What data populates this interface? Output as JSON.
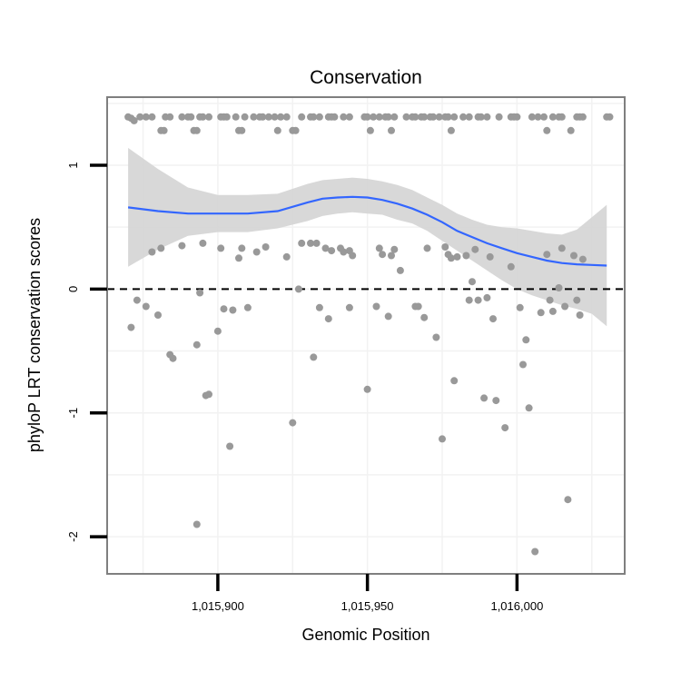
{
  "chart_data": {
    "type": "scatter",
    "title": "Conservation",
    "xlabel": "Genomic Position",
    "ylabel": "phyloP LRT conservation scores",
    "xlim": [
      1015863,
      1016036
    ],
    "ylim": [
      -2.3,
      1.55
    ],
    "x_ticks": [
      1015900,
      1015950,
      1016000
    ],
    "x_tick_labels": [
      "1,015,900",
      "1,015,950",
      "1,016,000"
    ],
    "y_ticks": [
      -2,
      -1,
      0,
      1
    ],
    "y_tick_labels": [
      "-2",
      "-1",
      "0",
      "1"
    ],
    "grid": true,
    "legend": "none",
    "reference_line": {
      "y": 0,
      "style": "dashed"
    },
    "colors": {
      "points": "#999999",
      "smooth_line": "#3366ff",
      "ribbon": "#d4d4d4",
      "reference": "#000000",
      "panel_border": "#7f7f7f",
      "grid": "#f2f2f2"
    },
    "points": [
      {
        "x": 1015870,
        "y": 1.39
      },
      {
        "x": 1015871,
        "y": 1.38
      },
      {
        "x": 1015872,
        "y": 1.36
      },
      {
        "x": 1015874,
        "y": 1.39
      },
      {
        "x": 1015876,
        "y": 1.39
      },
      {
        "x": 1015878,
        "y": 1.39
      },
      {
        "x": 1015881,
        "y": 1.28
      },
      {
        "x": 1015882,
        "y": 1.28
      },
      {
        "x": 1015882.5,
        "y": 1.39
      },
      {
        "x": 1015884,
        "y": 1.39
      },
      {
        "x": 1015888,
        "y": 1.39
      },
      {
        "x": 1015890,
        "y": 1.39
      },
      {
        "x": 1015891,
        "y": 1.39
      },
      {
        "x": 1015892,
        "y": 1.28
      },
      {
        "x": 1015893,
        "y": 1.28
      },
      {
        "x": 1015894,
        "y": 1.39
      },
      {
        "x": 1015895,
        "y": 1.39
      },
      {
        "x": 1015897,
        "y": 1.39
      },
      {
        "x": 1015901,
        "y": 1.39
      },
      {
        "x": 1015902,
        "y": 1.39
      },
      {
        "x": 1015903,
        "y": 1.39
      },
      {
        "x": 1015906,
        "y": 1.39
      },
      {
        "x": 1015907,
        "y": 1.28
      },
      {
        "x": 1015908,
        "y": 1.28
      },
      {
        "x": 1015909,
        "y": 1.39
      },
      {
        "x": 1015912,
        "y": 1.39
      },
      {
        "x": 1015914,
        "y": 1.39
      },
      {
        "x": 1015915,
        "y": 1.39
      },
      {
        "x": 1015917,
        "y": 1.39
      },
      {
        "x": 1015919,
        "y": 1.39
      },
      {
        "x": 1015920,
        "y": 1.28
      },
      {
        "x": 1015921,
        "y": 1.39
      },
      {
        "x": 1015923,
        "y": 1.39
      },
      {
        "x": 1015925,
        "y": 1.28
      },
      {
        "x": 1015926,
        "y": 1.28
      },
      {
        "x": 1015928,
        "y": 1.39
      },
      {
        "x": 1015931,
        "y": 1.39
      },
      {
        "x": 1015932,
        "y": 1.39
      },
      {
        "x": 1015934,
        "y": 1.39
      },
      {
        "x": 1015937,
        "y": 1.39
      },
      {
        "x": 1015938,
        "y": 1.39
      },
      {
        "x": 1015939,
        "y": 1.39
      },
      {
        "x": 1015942,
        "y": 1.39
      },
      {
        "x": 1015944,
        "y": 1.39
      },
      {
        "x": 1015949,
        "y": 1.39
      },
      {
        "x": 1015950,
        "y": 1.39
      },
      {
        "x": 1015951,
        "y": 1.28
      },
      {
        "x": 1015952,
        "y": 1.39
      },
      {
        "x": 1015954,
        "y": 1.39
      },
      {
        "x": 1015956,
        "y": 1.39
      },
      {
        "x": 1015957,
        "y": 1.39
      },
      {
        "x": 1015958,
        "y": 1.28
      },
      {
        "x": 1015959,
        "y": 1.39
      },
      {
        "x": 1015963,
        "y": 1.39
      },
      {
        "x": 1015965,
        "y": 1.39
      },
      {
        "x": 1015966,
        "y": 1.39
      },
      {
        "x": 1015968,
        "y": 1.39
      },
      {
        "x": 1015969,
        "y": 1.39
      },
      {
        "x": 1015971,
        "y": 1.39
      },
      {
        "x": 1015972,
        "y": 1.39
      },
      {
        "x": 1015974,
        "y": 1.39
      },
      {
        "x": 1015976,
        "y": 1.39
      },
      {
        "x": 1015977,
        "y": 1.39
      },
      {
        "x": 1015978,
        "y": 1.28
      },
      {
        "x": 1015979,
        "y": 1.39
      },
      {
        "x": 1015982,
        "y": 1.39
      },
      {
        "x": 1015984,
        "y": 1.39
      },
      {
        "x": 1015987,
        "y": 1.39
      },
      {
        "x": 1015988,
        "y": 1.39
      },
      {
        "x": 1015990,
        "y": 1.39
      },
      {
        "x": 1015994,
        "y": 1.39
      },
      {
        "x": 1015998,
        "y": 1.39
      },
      {
        "x": 1015999,
        "y": 1.39
      },
      {
        "x": 1016000,
        "y": 1.39
      },
      {
        "x": 1016005,
        "y": 1.39
      },
      {
        "x": 1016007,
        "y": 1.39
      },
      {
        "x": 1016009,
        "y": 1.39
      },
      {
        "x": 1016010,
        "y": 1.28
      },
      {
        "x": 1016012,
        "y": 1.39
      },
      {
        "x": 1016014,
        "y": 1.39
      },
      {
        "x": 1016015,
        "y": 1.39
      },
      {
        "x": 1016018,
        "y": 1.28
      },
      {
        "x": 1016020,
        "y": 1.39
      },
      {
        "x": 1016021,
        "y": 1.39
      },
      {
        "x": 1016022,
        "y": 1.39
      },
      {
        "x": 1016030,
        "y": 1.39
      },
      {
        "x": 1016031,
        "y": 1.39
      },
      {
        "x": 1015871,
        "y": -0.31
      },
      {
        "x": 1015873,
        "y": -0.09
      },
      {
        "x": 1015876,
        "y": -0.14
      },
      {
        "x": 1015878,
        "y": 0.3
      },
      {
        "x": 1015880,
        "y": -0.21
      },
      {
        "x": 1015881,
        "y": 0.33
      },
      {
        "x": 1015884,
        "y": -0.53
      },
      {
        "x": 1015885,
        "y": -0.56
      },
      {
        "x": 1015888,
        "y": 0.35
      },
      {
        "x": 1015893,
        "y": -0.45
      },
      {
        "x": 1015893,
        "y": -1.9
      },
      {
        "x": 1015894,
        "y": -0.03
      },
      {
        "x": 1015895,
        "y": 0.37
      },
      {
        "x": 1015896,
        "y": -0.86
      },
      {
        "x": 1015897,
        "y": -0.85
      },
      {
        "x": 1015900,
        "y": -0.34
      },
      {
        "x": 1015901,
        "y": 0.33
      },
      {
        "x": 1015902,
        "y": -0.16
      },
      {
        "x": 1015904,
        "y": -1.27
      },
      {
        "x": 1015905,
        "y": -0.17
      },
      {
        "x": 1015907,
        "y": 0.25
      },
      {
        "x": 1015908,
        "y": 0.33
      },
      {
        "x": 1015910,
        "y": -0.15
      },
      {
        "x": 1015913,
        "y": 0.3
      },
      {
        "x": 1015916,
        "y": 0.34
      },
      {
        "x": 1015923,
        "y": 0.26
      },
      {
        "x": 1015925,
        "y": -1.08
      },
      {
        "x": 1015927,
        "y": 0.0
      },
      {
        "x": 1015928,
        "y": 0.37
      },
      {
        "x": 1015931,
        "y": 0.37
      },
      {
        "x": 1015932,
        "y": -0.55
      },
      {
        "x": 1015933,
        "y": 0.37
      },
      {
        "x": 1015934,
        "y": -0.15
      },
      {
        "x": 1015936,
        "y": 0.33
      },
      {
        "x": 1015937,
        "y": -0.24
      },
      {
        "x": 1015938,
        "y": 0.31
      },
      {
        "x": 1015941,
        "y": 0.33
      },
      {
        "x": 1015942,
        "y": 0.3
      },
      {
        "x": 1015944,
        "y": 0.31
      },
      {
        "x": 1015944,
        "y": -0.15
      },
      {
        "x": 1015945,
        "y": 0.27
      },
      {
        "x": 1015950,
        "y": -0.81
      },
      {
        "x": 1015953,
        "y": -0.14
      },
      {
        "x": 1015954,
        "y": 0.33
      },
      {
        "x": 1015955,
        "y": 0.28
      },
      {
        "x": 1015957,
        "y": -0.22
      },
      {
        "x": 1015958,
        "y": 0.27
      },
      {
        "x": 1015959,
        "y": 0.32
      },
      {
        "x": 1015961,
        "y": 0.15
      },
      {
        "x": 1015966,
        "y": -0.14
      },
      {
        "x": 1015967,
        "y": -0.14
      },
      {
        "x": 1015969,
        "y": -0.23
      },
      {
        "x": 1015970,
        "y": 0.33
      },
      {
        "x": 1015973,
        "y": -0.39
      },
      {
        "x": 1015975,
        "y": -1.21
      },
      {
        "x": 1015976,
        "y": 0.34
      },
      {
        "x": 1015977,
        "y": 0.28
      },
      {
        "x": 1015978,
        "y": 0.25
      },
      {
        "x": 1015979,
        "y": -0.74
      },
      {
        "x": 1015980,
        "y": 0.26
      },
      {
        "x": 1015983,
        "y": 0.27
      },
      {
        "x": 1015984,
        "y": -0.09
      },
      {
        "x": 1015985,
        "y": 0.06
      },
      {
        "x": 1015986,
        "y": 0.32
      },
      {
        "x": 1015987,
        "y": -0.09
      },
      {
        "x": 1015989,
        "y": -0.88
      },
      {
        "x": 1015990,
        "y": -0.07
      },
      {
        "x": 1015991,
        "y": 0.26
      },
      {
        "x": 1015992,
        "y": -0.24
      },
      {
        "x": 1015993,
        "y": -0.9
      },
      {
        "x": 1015996,
        "y": -1.12
      },
      {
        "x": 1015998,
        "y": 0.18
      },
      {
        "x": 1016001,
        "y": -0.15
      },
      {
        "x": 1016002,
        "y": -0.61
      },
      {
        "x": 1016003,
        "y": -0.41
      },
      {
        "x": 1016004,
        "y": -0.96
      },
      {
        "x": 1016006,
        "y": -2.12
      },
      {
        "x": 1016008,
        "y": -0.19
      },
      {
        "x": 1016010,
        "y": 0.28
      },
      {
        "x": 1016011,
        "y": -0.09
      },
      {
        "x": 1016012,
        "y": -0.18
      },
      {
        "x": 1016014,
        "y": 0.01
      },
      {
        "x": 1016015,
        "y": 0.33
      },
      {
        "x": 1016016,
        "y": -0.14
      },
      {
        "x": 1016017,
        "y": -1.7
      },
      {
        "x": 1016019,
        "y": 0.27
      },
      {
        "x": 1016020,
        "y": -0.09
      },
      {
        "x": 1016021,
        "y": -0.21
      },
      {
        "x": 1016022,
        "y": 0.24
      }
    ],
    "smooth": {
      "x": [
        1015870,
        1015880,
        1015890,
        1015900,
        1015910,
        1015920,
        1015930,
        1015935,
        1015940,
        1015945,
        1015950,
        1015955,
        1015960,
        1015965,
        1015970,
        1015975,
        1015980,
        1015985,
        1015990,
        1015995,
        1016000,
        1016005,
        1016010,
        1016015,
        1016020,
        1016025,
        1016030
      ],
      "y": [
        0.66,
        0.63,
        0.61,
        0.61,
        0.61,
        0.63,
        0.7,
        0.73,
        0.74,
        0.745,
        0.74,
        0.72,
        0.69,
        0.65,
        0.6,
        0.54,
        0.47,
        0.42,
        0.37,
        0.33,
        0.29,
        0.26,
        0.23,
        0.21,
        0.2,
        0.195,
        0.19
      ],
      "lower": [
        0.18,
        0.32,
        0.43,
        0.46,
        0.46,
        0.49,
        0.55,
        0.59,
        0.61,
        0.62,
        0.61,
        0.6,
        0.56,
        0.53,
        0.47,
        0.39,
        0.31,
        0.23,
        0.15,
        0.07,
        0.0,
        -0.05,
        -0.09,
        -0.13,
        -0.16,
        -0.2,
        -0.3
      ],
      "upper": [
        1.14,
        0.97,
        0.82,
        0.76,
        0.76,
        0.77,
        0.85,
        0.88,
        0.89,
        0.9,
        0.89,
        0.87,
        0.84,
        0.8,
        0.74,
        0.68,
        0.61,
        0.56,
        0.52,
        0.5,
        0.49,
        0.47,
        0.45,
        0.44,
        0.48,
        0.58,
        0.68
      ]
    }
  }
}
